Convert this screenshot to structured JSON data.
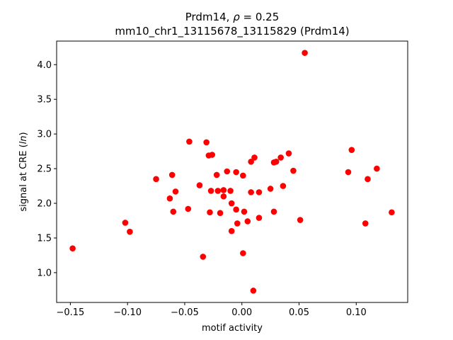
{
  "chart_data": {
    "type": "scatter",
    "title_line1_prefix": "Prdm14, ",
    "title_line1_symbol": "ρ",
    "title_line1_suffix": " = 0.25",
    "title_line2": "mm10_chr1_13115678_13115829 (Prdm14)",
    "xlabel": "motif activity",
    "ylabel_prefix": "signal at CRE (",
    "ylabel_italic": "ln",
    "ylabel_suffix": ")",
    "xlim": [
      -0.162,
      0.145
    ],
    "ylim": [
      0.57,
      4.34
    ],
    "xticks": [
      -0.15,
      -0.1,
      -0.05,
      0.0,
      0.05,
      0.1
    ],
    "xtick_labels": [
      "−0.15",
      "−0.10",
      "−0.05",
      "0.00",
      "0.05",
      "0.10"
    ],
    "yticks": [
      1.0,
      1.5,
      2.0,
      2.5,
      3.0,
      3.5,
      4.0
    ],
    "ytick_labels": [
      "1.0",
      "1.5",
      "2.0",
      "2.5",
      "3.0",
      "3.5",
      "4.0"
    ],
    "marker_color": "#ff0000",
    "grid": false,
    "points": [
      [
        -0.148,
        1.35
      ],
      [
        -0.102,
        1.72
      ],
      [
        -0.098,
        1.59
      ],
      [
        -0.075,
        2.35
      ],
      [
        -0.063,
        2.07
      ],
      [
        -0.061,
        2.41
      ],
      [
        -0.06,
        1.88
      ],
      [
        -0.058,
        2.17
      ],
      [
        -0.047,
        1.92
      ],
      [
        -0.046,
        2.89
      ],
      [
        -0.037,
        2.26
      ],
      [
        -0.034,
        1.23
      ],
      [
        -0.031,
        2.88
      ],
      [
        -0.029,
        2.69
      ],
      [
        -0.028,
        1.87
      ],
      [
        -0.027,
        2.18
      ],
      [
        -0.026,
        2.7
      ],
      [
        -0.022,
        2.41
      ],
      [
        -0.021,
        2.18
      ],
      [
        -0.019,
        1.86
      ],
      [
        -0.016,
        2.19
      ],
      [
        -0.016,
        2.1
      ],
      [
        -0.013,
        2.46
      ],
      [
        -0.01,
        2.18
      ],
      [
        -0.009,
        2.0
      ],
      [
        -0.009,
        1.6
      ],
      [
        -0.005,
        1.91
      ],
      [
        -0.005,
        2.45
      ],
      [
        -0.004,
        1.71
      ],
      [
        0.001,
        2.4
      ],
      [
        0.001,
        1.28
      ],
      [
        0.002,
        1.88
      ],
      [
        0.005,
        1.74
      ],
      [
        0.008,
        2.6
      ],
      [
        0.008,
        2.16
      ],
      [
        0.01,
        0.74
      ],
      [
        0.011,
        2.66
      ],
      [
        0.015,
        2.16
      ],
      [
        0.015,
        1.79
      ],
      [
        0.025,
        2.21
      ],
      [
        0.028,
        2.59
      ],
      [
        0.028,
        1.88
      ],
      [
        0.03,
        2.6
      ],
      [
        0.034,
        2.66
      ],
      [
        0.036,
        2.25
      ],
      [
        0.041,
        2.72
      ],
      [
        0.045,
        2.47
      ],
      [
        0.051,
        1.76
      ],
      [
        0.055,
        4.17
      ],
      [
        0.093,
        2.45
      ],
      [
        0.096,
        2.77
      ],
      [
        0.108,
        1.71
      ],
      [
        0.11,
        2.35
      ],
      [
        0.118,
        2.5
      ],
      [
        0.131,
        1.87
      ]
    ]
  }
}
